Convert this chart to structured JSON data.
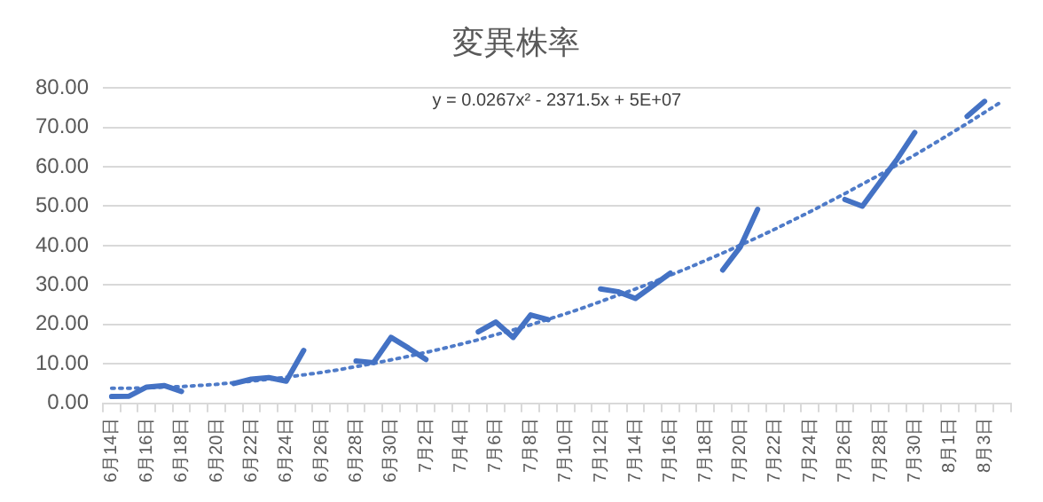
{
  "chart_data": {
    "type": "line",
    "title": "変異株率",
    "categories": [
      "6月14日",
      null,
      "6月16日",
      null,
      "6月18日",
      null,
      "6月20日",
      null,
      "6月22日",
      null,
      "6月24日",
      null,
      "6月26日",
      null,
      "6月28日",
      null,
      "6月30日",
      null,
      "7月2日",
      null,
      "7月4日",
      null,
      "7月6日",
      null,
      "7月8日",
      null,
      "7月10日",
      null,
      "7月12日",
      null,
      "7月14日",
      null,
      "7月16日",
      null,
      "7月18日",
      null,
      "7月20日",
      null,
      "7月22日",
      null,
      "7月24日",
      null,
      "7月26日",
      null,
      "7月28日",
      null,
      "7月30日",
      null,
      "8月1日",
      null,
      "8月3日",
      null
    ],
    "series": [
      {
        "color": "#4472c4",
        "line_style": "solid",
        "values": [
          1.7,
          1.8,
          4.1,
          4.5,
          3.0,
          null,
          null,
          5.0,
          6.1,
          6.5,
          5.6,
          13.4,
          null,
          null,
          10.7,
          10.3,
          16.7,
          14,
          11.1,
          null,
          null,
          18.1,
          20.6,
          16.7,
          22.4,
          21.2,
          null,
          null,
          29.0,
          28.3,
          26.6,
          29.8,
          33.0,
          null,
          null,
          33.8,
          39.6,
          49.2,
          null,
          null,
          null,
          null,
          51.7,
          50.0,
          56,
          62,
          68.7,
          null,
          null,
          72.8,
          76.6,
          null
        ]
      },
      {
        "color": "#4f7bc8",
        "line_style": "dotted",
        "values": [
          3.8,
          3.8,
          3.9,
          4.1,
          4.2,
          4.5,
          4.8,
          5.2,
          5.6,
          6.1,
          6.6,
          7.2,
          7.8,
          8.5,
          9.3,
          10.1,
          11.0,
          11.9,
          12.9,
          13.9,
          15.0,
          16.1,
          17.4,
          18.6,
          19.9,
          21.3,
          22.7,
          24.2,
          25.8,
          27.4,
          29.0,
          30.7,
          32.5,
          34.3,
          36.2,
          38.1,
          40.1,
          42.1,
          44.2,
          46.4,
          48.6,
          50.9,
          53.2,
          55.6,
          58.0,
          60.5,
          63.0,
          65.6,
          68.3,
          71.0,
          73.8,
          76.6
        ]
      }
    ],
    "ylim": [
      0,
      80
    ],
    "yticks": [
      {
        "value": 0,
        "label": "0.00"
      },
      {
        "value": 10,
        "label": "10.00"
      },
      {
        "value": 20,
        "label": "20.00"
      },
      {
        "value": 30,
        "label": "30.00"
      },
      {
        "value": 40,
        "label": "40.00"
      },
      {
        "value": 50,
        "label": "50.00"
      },
      {
        "value": 60,
        "label": "60.00"
      },
      {
        "value": 70,
        "label": "70.00"
      },
      {
        "value": 80,
        "label": "80.00"
      }
    ],
    "grid": "y",
    "legend": false,
    "marker": "none",
    "annotations": [
      "y = 0.0267x² - 2371.5x + 5E+07"
    ]
  }
}
